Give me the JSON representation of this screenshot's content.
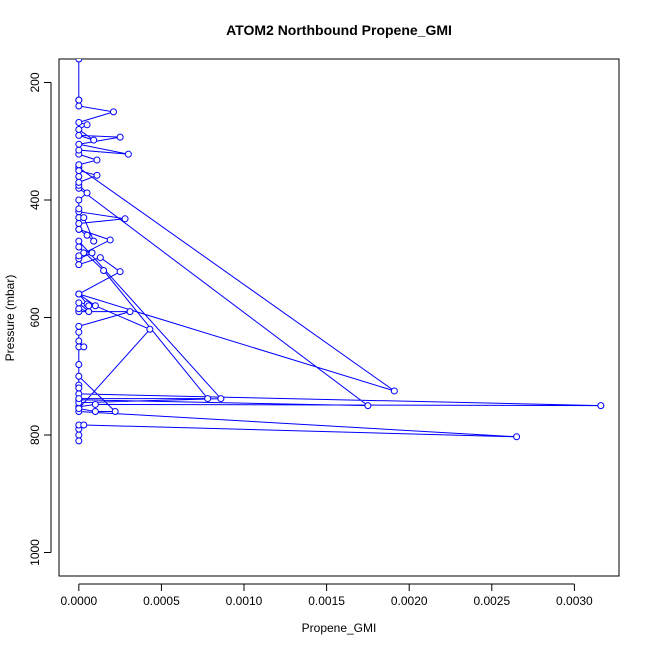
{
  "chart_data": {
    "type": "line",
    "title": "ATOM2 Northbound Propene_GMI",
    "xlabel": "Propene_GMI",
    "ylabel": "Pressure (mbar)",
    "xlim": [
      -0.00012,
      0.00327
    ],
    "ylim": [
      1040,
      160
    ],
    "x_ticks": [
      0.0,
      0.0005,
      0.001,
      0.0015,
      0.002,
      0.0025,
      0.003
    ],
    "x_tick_labels": [
      "0.0000",
      "0.0005",
      "0.0010",
      "0.0015",
      "0.0020",
      "0.0025",
      "0.0030"
    ],
    "y_ticks": [
      200,
      400,
      600,
      800,
      1000
    ],
    "y_tick_labels": [
      "200",
      "400",
      "600",
      "800",
      "1000"
    ],
    "grid": false,
    "legend": "none",
    "series_color": "#0000ff",
    "series": [
      {
        "values": [
          [
            0.0,
            810
          ],
          [
            0.0,
            800
          ],
          [
            0.0,
            790
          ],
          [
            0.0,
            783
          ],
          [
            3e-05,
            783
          ],
          [
            0.00265,
            803
          ],
          [
            0.0,
            760
          ],
          [
            0.0,
            752
          ],
          [
            0.0001,
            748
          ],
          [
            0.00316,
            750
          ],
          [
            0.0,
            730
          ],
          [
            0.0,
            715
          ],
          [
            0.0,
            700
          ],
          [
            0.00022,
            760
          ],
          [
            0.0001,
            760
          ],
          [
            0.0,
            755
          ],
          [
            0.00043,
            620
          ],
          [
            0.0001,
            580
          ],
          [
            0.0,
            560
          ],
          [
            0.00191,
            725
          ],
          [
            0.0,
            345
          ],
          [
            0.0,
            360
          ],
          [
            0.0,
            380
          ],
          [
            0.00175,
            750
          ],
          [
            0.0,
            740
          ],
          [
            0.0,
            745
          ],
          [
            0.00086,
            738
          ],
          [
            0.0,
            470
          ],
          [
            0.0,
            480
          ],
          [
            0.00015,
            520
          ],
          [
            0.00078,
            738
          ],
          [
            0.0,
            738
          ],
          [
            0.0,
            720
          ],
          [
            0.0,
            680
          ],
          [
            0.0,
            650
          ],
          [
            3e-05,
            650
          ],
          [
            0.0,
            640
          ],
          [
            0.0,
            625
          ],
          [
            0.0,
            615
          ],
          [
            0.00031,
            590
          ],
          [
            0.0,
            590
          ],
          [
            0.0,
            585
          ],
          [
            6e-05,
            590
          ],
          [
            0.0,
            575
          ],
          [
            5e-05,
            577
          ],
          [
            6e-05,
            580
          ],
          [
            0.0,
            560
          ],
          [
            0.00025,
            522
          ],
          [
            0.00013,
            498
          ],
          [
            0.0,
            510
          ],
          [
            0.0,
            500
          ],
          [
            8e-05,
            490
          ],
          [
            3e-05,
            490
          ],
          [
            0.0,
            495
          ],
          [
            0.00019,
            468
          ],
          [
            0.0,
            450
          ],
          [
            0.0,
            440
          ],
          [
            0.00028,
            432
          ],
          [
            0.0,
            420
          ],
          [
            0.0,
            430
          ],
          [
            3e-05,
            430
          ],
          [
            9e-05,
            470
          ],
          [
            5e-05,
            460
          ],
          [
            0.0,
            450
          ],
          [
            0.0,
            415
          ],
          [
            0.0,
            400
          ],
          [
            5e-05,
            388
          ],
          [
            0.0,
            375
          ],
          [
            0.0,
            370
          ],
          [
            0.00011,
            358
          ],
          [
            0.0,
            350
          ],
          [
            0.0,
            340
          ],
          [
            0.00011,
            332
          ],
          [
            0.0,
            322
          ],
          [
            0.0,
            315
          ],
          [
            0.0003,
            322
          ],
          [
            0.0,
            305
          ],
          [
            0.00025,
            293
          ],
          [
            0.0,
            290
          ],
          [
            9e-05,
            298
          ],
          [
            0.0,
            280
          ],
          [
            5e-05,
            272
          ],
          [
            0.0,
            268
          ],
          [
            0.00021,
            250
          ],
          [
            0.0,
            240
          ],
          [
            0.0,
            230
          ],
          [
            0.0,
            160
          ],
          [
            0.0,
            230
          ]
        ]
      }
    ]
  }
}
